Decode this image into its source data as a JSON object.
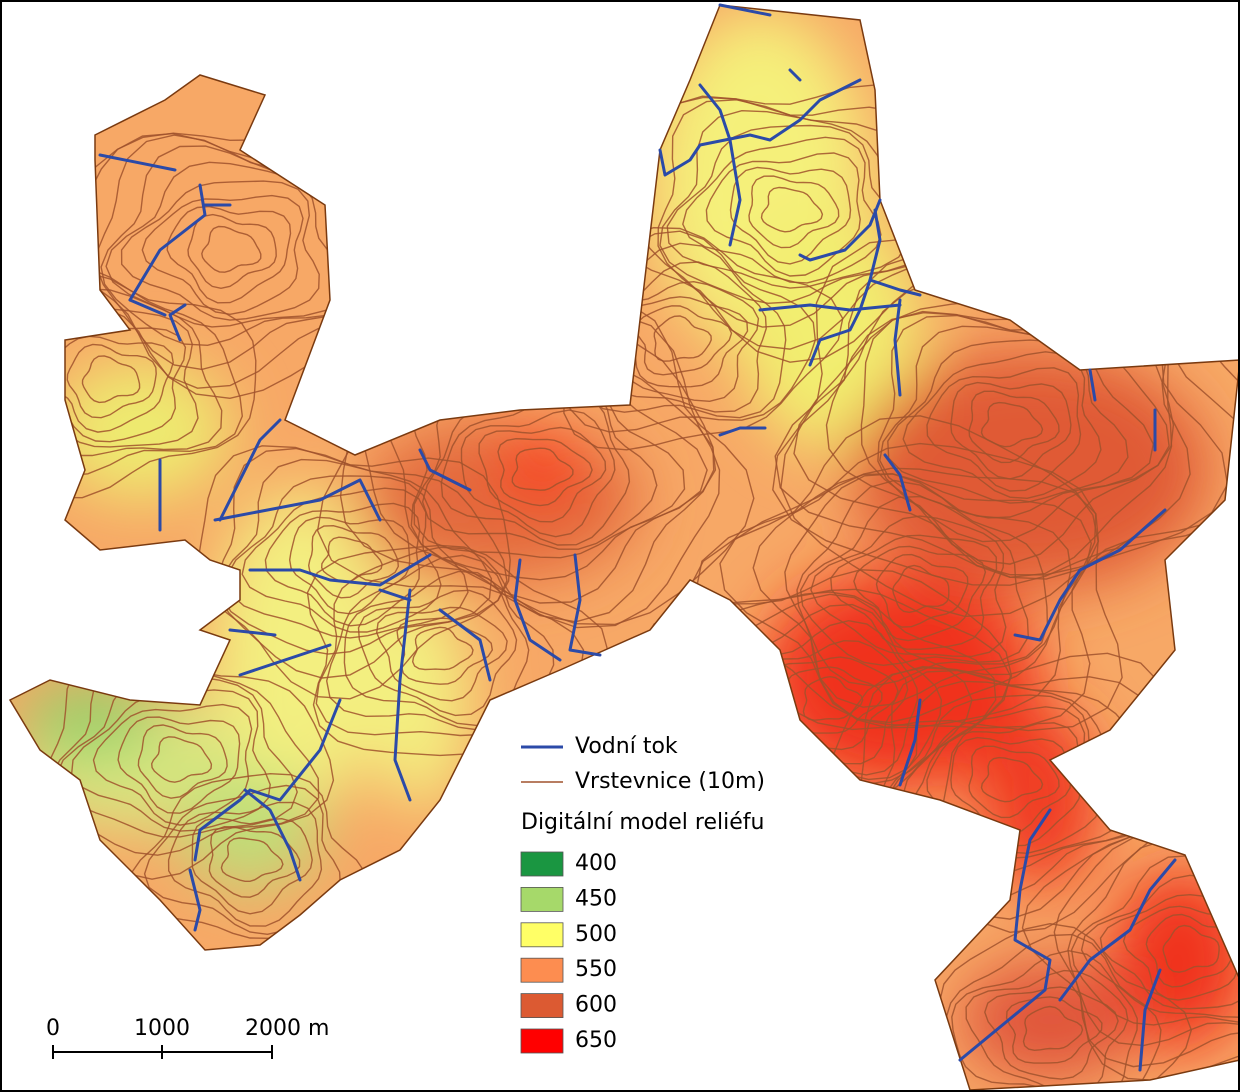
{
  "legend": {
    "river": "Vodní tok",
    "contours": "Vrstevnice (10m)",
    "dem_title": "Digitální model reliéfu",
    "river_color": "#2b4aa8",
    "contour_color": "#a0522d",
    "classes": [
      {
        "label": "400",
        "color": "#1a9641"
      },
      {
        "label": "450",
        "color": "#a6d96a"
      },
      {
        "label": "500",
        "color": "#ffff66"
      },
      {
        "label": "550",
        "color": "#fd8d50"
      },
      {
        "label": "600",
        "color": "#dc5a32"
      },
      {
        "label": "650",
        "color": "#ff0000"
      }
    ]
  },
  "scale_bar": {
    "labels": [
      "0",
      "1000",
      "2000 m"
    ]
  }
}
